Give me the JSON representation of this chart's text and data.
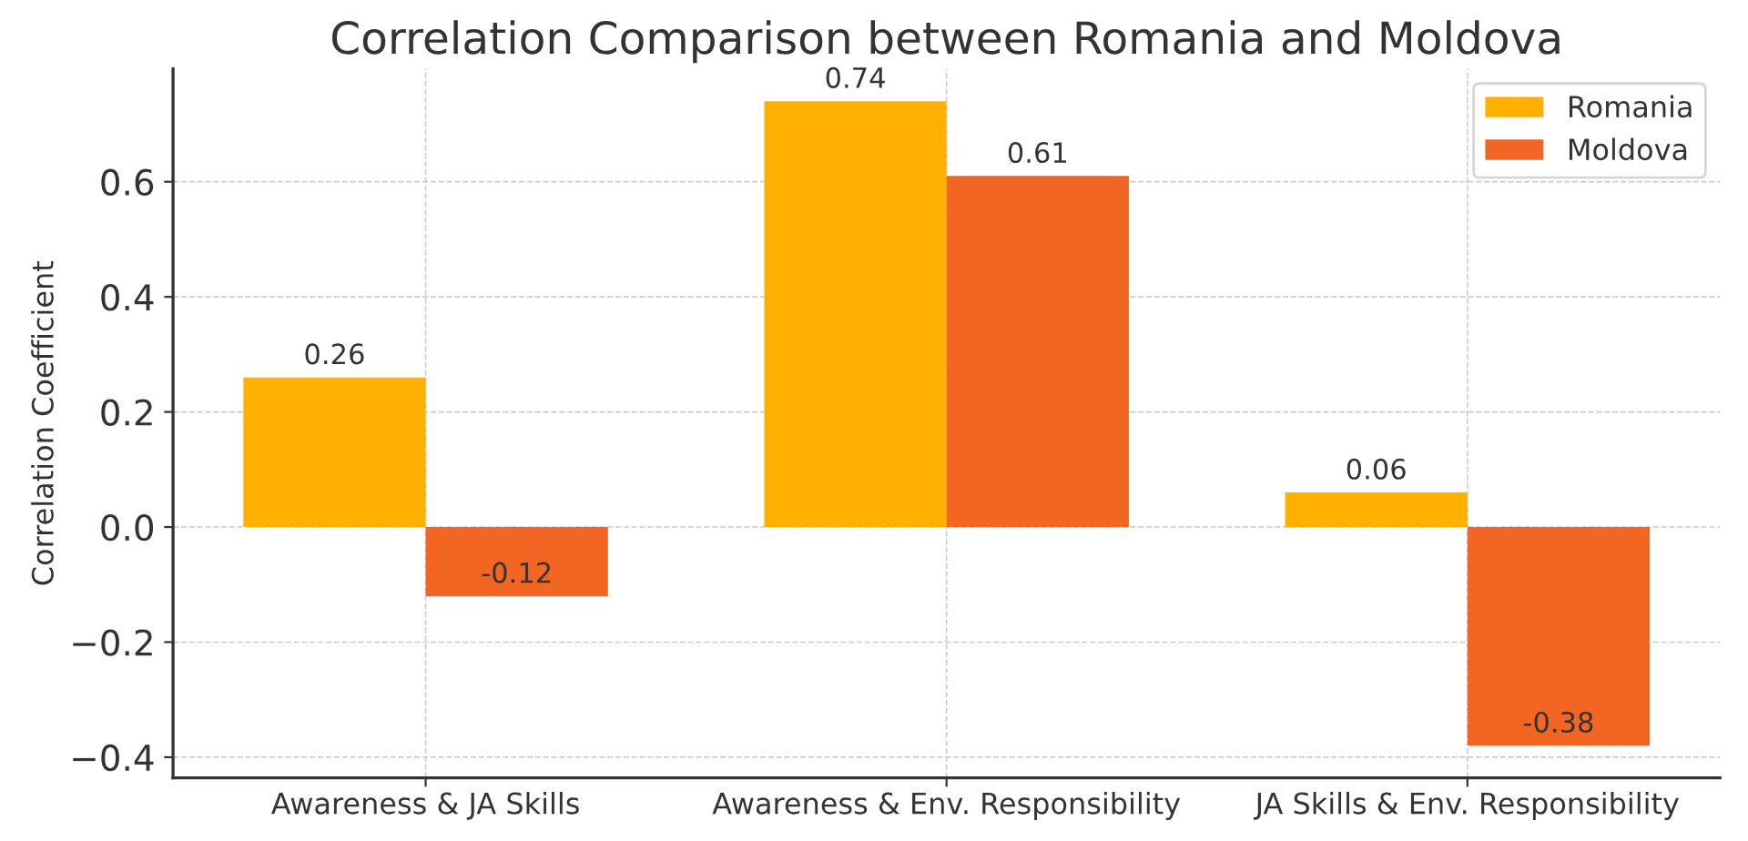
{
  "chart_data": {
    "type": "bar",
    "title": "Correlation Comparison between Romania and Moldova",
    "ylabel": "Correlation Coefficient",
    "categories": [
      "Awareness & JA Skills",
      "Awareness & Env. Responsibility",
      "JA Skills & Env. Responsibility"
    ],
    "series": [
      {
        "name": "Romania",
        "color": "#ffb000",
        "values": [
          0.26,
          0.74,
          0.06
        ]
      },
      {
        "name": "Moldova",
        "color": "#f26522",
        "values": [
          -0.12,
          0.61,
          -0.38
        ]
      }
    ],
    "ylim": [
      -0.436,
      0.796
    ],
    "yticks": [
      {
        "value": -0.4,
        "label": "−0.4"
      },
      {
        "value": -0.2,
        "label": "−0.2"
      },
      {
        "value": 0,
        "label": "0.0"
      },
      0.2,
      0.4,
      0.6
    ],
    "grid": true,
    "legend": "top right",
    "data_labels": true
  }
}
